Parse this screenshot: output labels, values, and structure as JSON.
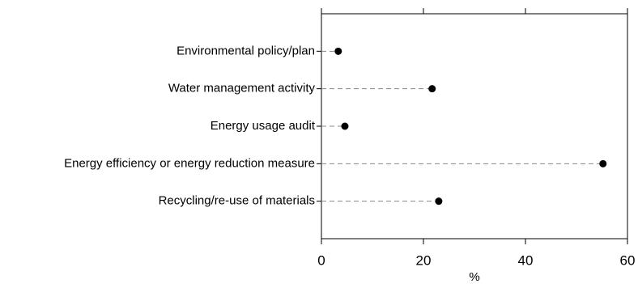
{
  "chart_data": {
    "type": "dot",
    "categories": [
      "Environmental policy/plan",
      "Water management activity",
      "Energy usage audit",
      "Energy efficiency or energy reduction measure",
      "Recycling/re-use of materials"
    ],
    "values": [
      3.3,
      21.7,
      4.6,
      55.2,
      23.0
    ],
    "color": "#000000",
    "xlabel": "%",
    "xlim": [
      0,
      60
    ],
    "xticks": [
      0,
      20,
      40,
      60
    ]
  }
}
